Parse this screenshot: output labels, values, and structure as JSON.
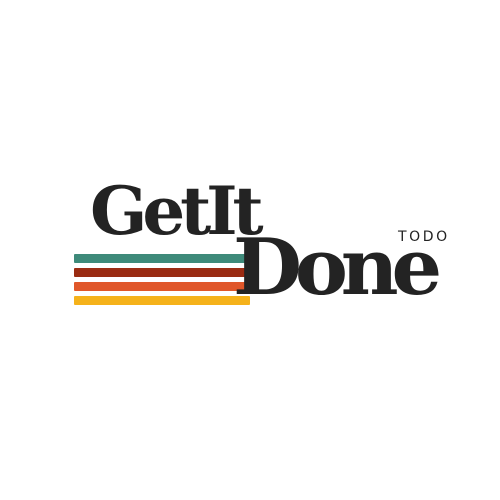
{
  "logo": {
    "line1": "GetIt",
    "line2": "Done",
    "tagline": "TODO",
    "text_color": "#232323",
    "background_color": "#ffffff",
    "stripes": [
      {
        "name": "teal-stripe",
        "color": "#3e8a7a"
      },
      {
        "name": "brown-stripe",
        "color": "#9a2b12"
      },
      {
        "name": "orange-stripe",
        "color": "#e0572a"
      },
      {
        "name": "yellow-stripe",
        "color": "#f5b21b"
      }
    ]
  }
}
